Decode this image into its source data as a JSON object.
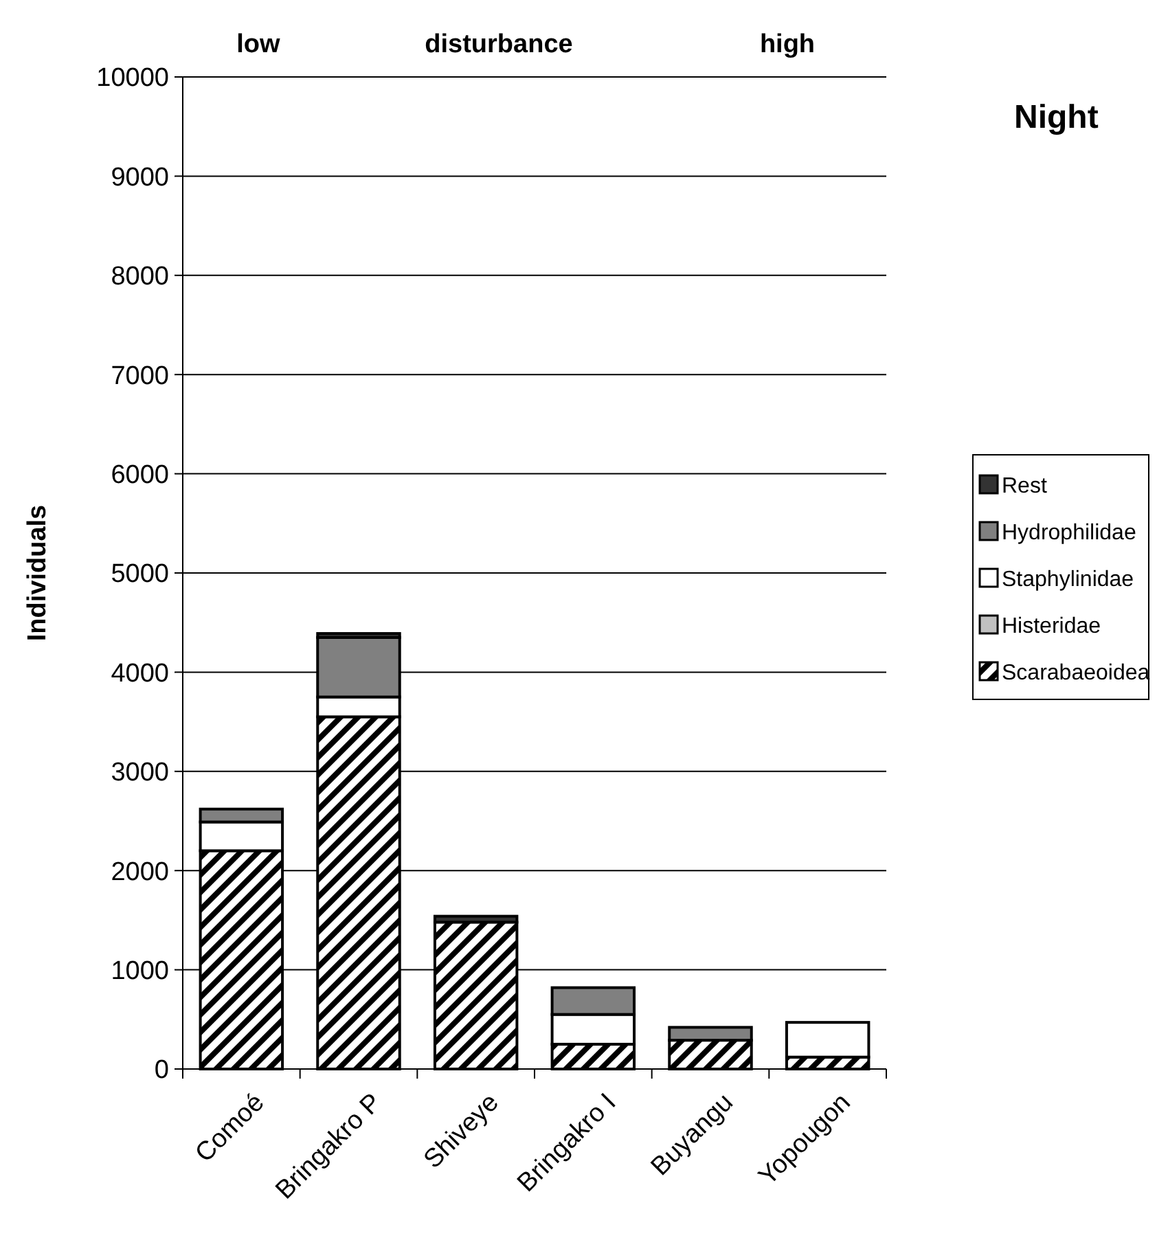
{
  "chart_data": {
    "type": "bar",
    "stacked": true,
    "title": "Night",
    "ylabel": "Individuals",
    "annotations": [
      "low",
      "disturbance",
      "high"
    ],
    "categories": [
      "Comoé",
      "Bringakro P",
      "Shiveye",
      "Bringakro I",
      "Buyangu",
      "Yopougon"
    ],
    "series": [
      {
        "name": "Scarabaeoidea",
        "color": "#000000",
        "values": [
          2200,
          3550,
          1480,
          250,
          290,
          120
        ]
      },
      {
        "name": "Histeridae",
        "color": "#c0c0c0",
        "values": [
          0,
          0,
          0,
          0,
          0,
          0
        ]
      },
      {
        "name": "Staphylinidae",
        "color": "#ffffff",
        "values": [
          290,
          200,
          0,
          300,
          0,
          350
        ]
      },
      {
        "name": "Hydrophilidae",
        "color": "#808080",
        "values": [
          130,
          600,
          0,
          270,
          130,
          0
        ]
      },
      {
        "name": "Rest",
        "color": "#333333",
        "values": [
          0,
          40,
          60,
          0,
          0,
          0
        ]
      }
    ],
    "ylim": [
      0,
      10000
    ],
    "yticks": [
      0,
      1000,
      2000,
      3000,
      4000,
      5000,
      6000,
      7000,
      8000,
      9000,
      10000
    ],
    "grid": "y",
    "legend": "right"
  }
}
